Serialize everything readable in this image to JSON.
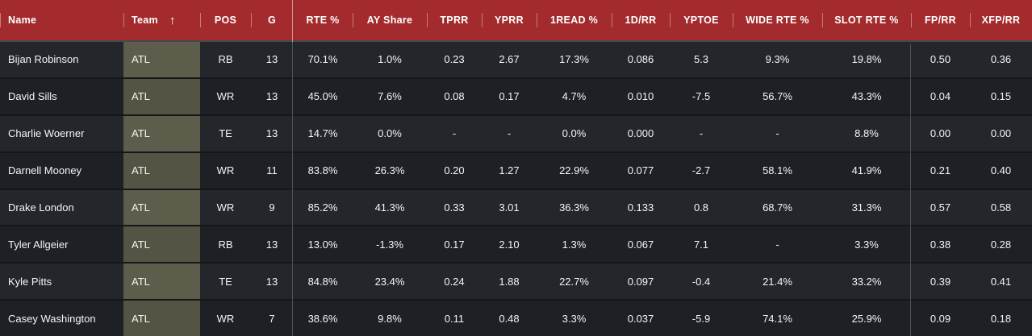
{
  "table": {
    "sort": {
      "column": "Team",
      "direction": "ascending",
      "icon": "↑"
    },
    "columns": [
      {
        "key": "name",
        "label": "Name",
        "align": "left"
      },
      {
        "key": "team",
        "label": "Team",
        "align": "left",
        "sorted": true
      },
      {
        "key": "pos",
        "label": "POS",
        "align": "center"
      },
      {
        "key": "g",
        "label": "G",
        "align": "center"
      },
      {
        "key": "rte",
        "label": "RTE %",
        "align": "center"
      },
      {
        "key": "ay_share",
        "label": "AY Share",
        "align": "center"
      },
      {
        "key": "tprr",
        "label": "TPRR",
        "align": "center"
      },
      {
        "key": "yprr",
        "label": "YPRR",
        "align": "center"
      },
      {
        "key": "read1",
        "label": "1READ %",
        "align": "center"
      },
      {
        "key": "d1_rr",
        "label": "1D/RR",
        "align": "center"
      },
      {
        "key": "yptoe",
        "label": "YPTOE",
        "align": "center"
      },
      {
        "key": "wide_rte",
        "label": "WIDE RTE %",
        "align": "center"
      },
      {
        "key": "slot_rte",
        "label": "SLOT RTE %",
        "align": "center"
      },
      {
        "key": "fp_rr",
        "label": "FP/RR",
        "align": "center"
      },
      {
        "key": "xfp_rr",
        "label": "XFP/RR",
        "align": "center"
      }
    ],
    "rows": [
      {
        "name": "Bijan Robinson",
        "team": "ATL",
        "pos": "RB",
        "g": "13",
        "rte": "70.1%",
        "ay_share": "1.0%",
        "tprr": "0.23",
        "yprr": "2.67",
        "read1": "17.3%",
        "d1_rr": "0.086",
        "yptoe": "5.3",
        "wide_rte": "9.3%",
        "slot_rte": "19.8%",
        "fp_rr": "0.50",
        "xfp_rr": "0.36"
      },
      {
        "name": "David Sills",
        "team": "ATL",
        "pos": "WR",
        "g": "13",
        "rte": "45.0%",
        "ay_share": "7.6%",
        "tprr": "0.08",
        "yprr": "0.17",
        "read1": "4.7%",
        "d1_rr": "0.010",
        "yptoe": "-7.5",
        "wide_rte": "56.7%",
        "slot_rte": "43.3%",
        "fp_rr": "0.04",
        "xfp_rr": "0.15"
      },
      {
        "name": "Charlie Woerner",
        "team": "ATL",
        "pos": "TE",
        "g": "13",
        "rte": "14.7%",
        "ay_share": "0.0%",
        "tprr": "-",
        "yprr": "-",
        "read1": "0.0%",
        "d1_rr": "0.000",
        "yptoe": "-",
        "wide_rte": "-",
        "slot_rte": "8.8%",
        "fp_rr": "0.00",
        "xfp_rr": "0.00"
      },
      {
        "name": "Darnell Mooney",
        "team": "ATL",
        "pos": "WR",
        "g": "11",
        "rte": "83.8%",
        "ay_share": "26.3%",
        "tprr": "0.20",
        "yprr": "1.27",
        "read1": "22.9%",
        "d1_rr": "0.077",
        "yptoe": "-2.7",
        "wide_rte": "58.1%",
        "slot_rte": "41.9%",
        "fp_rr": "0.21",
        "xfp_rr": "0.40"
      },
      {
        "name": "Drake London",
        "team": "ATL",
        "pos": "WR",
        "g": "9",
        "rte": "85.2%",
        "ay_share": "41.3%",
        "tprr": "0.33",
        "yprr": "3.01",
        "read1": "36.3%",
        "d1_rr": "0.133",
        "yptoe": "0.8",
        "wide_rte": "68.7%",
        "slot_rte": "31.3%",
        "fp_rr": "0.57",
        "xfp_rr": "0.58"
      },
      {
        "name": "Tyler Allgeier",
        "team": "ATL",
        "pos": "RB",
        "g": "13",
        "rte": "13.0%",
        "ay_share": "-1.3%",
        "tprr": "0.17",
        "yprr": "2.10",
        "read1": "1.3%",
        "d1_rr": "0.067",
        "yptoe": "7.1",
        "wide_rte": "-",
        "slot_rte": "3.3%",
        "fp_rr": "0.38",
        "xfp_rr": "0.28"
      },
      {
        "name": "Kyle Pitts",
        "team": "ATL",
        "pos": "TE",
        "g": "13",
        "rte": "84.8%",
        "ay_share": "23.4%",
        "tprr": "0.24",
        "yprr": "1.88",
        "read1": "22.7%",
        "d1_rr": "0.097",
        "yptoe": "-0.4",
        "wide_rte": "21.4%",
        "slot_rte": "33.2%",
        "fp_rr": "0.39",
        "xfp_rr": "0.41"
      },
      {
        "name": "Casey Washington",
        "team": "ATL",
        "pos": "WR",
        "g": "7",
        "rte": "38.6%",
        "ay_share": "9.8%",
        "tprr": "0.11",
        "yprr": "0.48",
        "read1": "3.3%",
        "d1_rr": "0.037",
        "yptoe": "-5.9",
        "wide_rte": "74.1%",
        "slot_rte": "25.9%",
        "fp_rr": "0.09",
        "xfp_rr": "0.18"
      }
    ]
  },
  "colors": {
    "header_bg": "#a32b2d",
    "row_odd_bg": "#23262a",
    "row_even_bg": "#1d2024",
    "team_cell_odd_bg": "#5d5d4b",
    "team_cell_even_bg": "#545444",
    "pinned_divider": "#4e5256",
    "text": "#f5f5f5"
  }
}
